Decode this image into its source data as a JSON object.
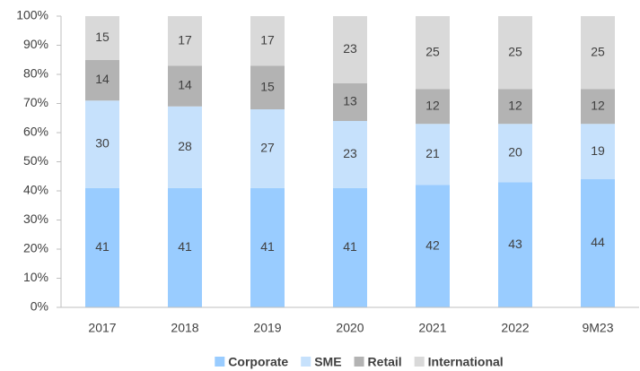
{
  "chart_data": {
    "type": "stacked_bar",
    "categories": [
      "2017",
      "2018",
      "2019",
      "2020",
      "2021",
      "2022",
      "9M23"
    ],
    "series": [
      {
        "name": "Corporate",
        "color": "#99ccff",
        "values": [
          41,
          41,
          41,
          41,
          42,
          43,
          44
        ]
      },
      {
        "name": "SME",
        "color": "#c6e1fc",
        "values": [
          30,
          28,
          27,
          23,
          21,
          20,
          19
        ]
      },
      {
        "name": "Retail",
        "color": "#b3b3b3",
        "values": [
          14,
          14,
          15,
          13,
          12,
          12,
          12
        ]
      },
      {
        "name": "International",
        "color": "#d9d9d9",
        "values": [
          15,
          17,
          17,
          23,
          25,
          25,
          25
        ]
      }
    ],
    "ylim": [
      0,
      100
    ],
    "yticks": [
      {
        "value": 0,
        "label": "0%"
      },
      {
        "value": 10,
        "label": "10%"
      },
      {
        "value": 20,
        "label": "20%"
      },
      {
        "value": 30,
        "label": "30%"
      },
      {
        "value": 40,
        "label": "40%"
      },
      {
        "value": 50,
        "label": "50%"
      },
      {
        "value": 60,
        "label": "60%"
      },
      {
        "value": 70,
        "label": "70%"
      },
      {
        "value": 80,
        "label": "80%"
      },
      {
        "value": 90,
        "label": "90%"
      },
      {
        "value": 100,
        "label": "100%"
      }
    ],
    "legend": "bottom"
  }
}
